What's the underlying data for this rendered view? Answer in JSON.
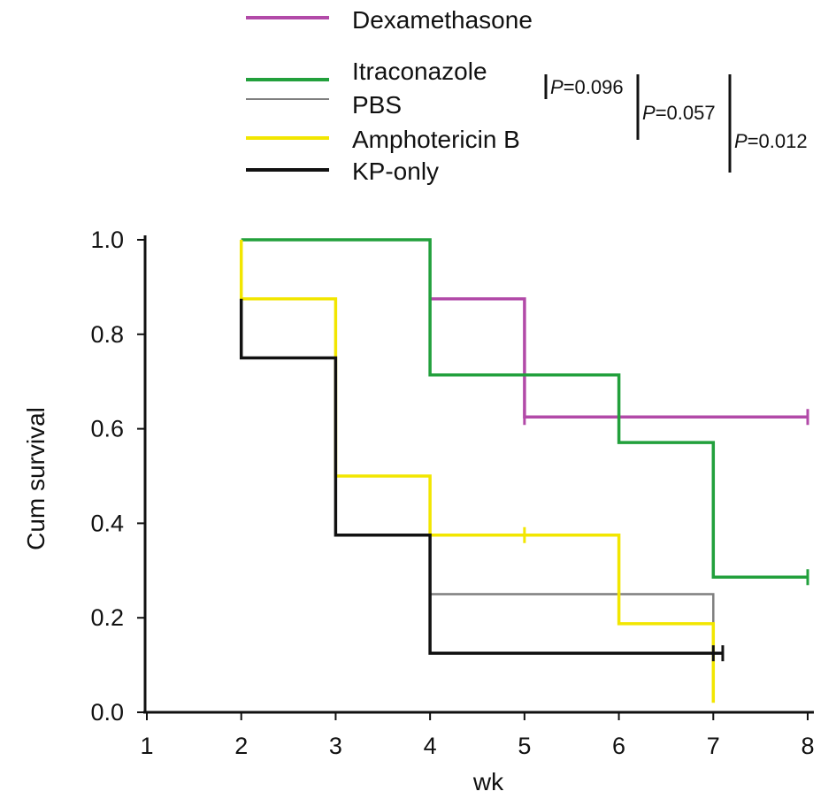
{
  "chart_data": {
    "type": "line",
    "title": "",
    "xlabel": "wk",
    "ylabel": "Cum survival",
    "xlim": [
      1,
      8
    ],
    "ylim": [
      0,
      1.0
    ],
    "x_ticks": [
      "1",
      "2",
      "3",
      "4",
      "5",
      "6",
      "7",
      "8"
    ],
    "y_ticks": [
      "0.0",
      "0.2",
      "0.4",
      "0.6",
      "0.8",
      "1.0"
    ],
    "grid": false,
    "legend_position": "top-left",
    "series": [
      {
        "name": "Dexamethasone",
        "color": "#b24aa8",
        "steps": [
          [
            4,
            0.875
          ],
          [
            5,
            0.875
          ],
          [
            5,
            0.625
          ],
          [
            8,
            0.625
          ]
        ],
        "censored": [
          [
            5,
            0.625
          ],
          [
            8,
            0.625
          ]
        ]
      },
      {
        "name": "Itraconazole",
        "color": "#22a03c",
        "steps": [
          [
            2,
            1.0
          ],
          [
            4,
            1.0
          ],
          [
            4,
            0.714
          ],
          [
            6,
            0.714
          ],
          [
            6,
            0.571
          ],
          [
            7,
            0.571
          ],
          [
            7,
            0.286
          ],
          [
            8,
            0.286
          ]
        ],
        "censored": [
          [
            8,
            0.286
          ]
        ]
      },
      {
        "name": "PBS",
        "color": "#7f7f7f",
        "steps": [
          [
            2,
            1.0
          ],
          [
            2,
            0.875
          ],
          [
            3,
            0.875
          ],
          [
            3,
            0.375
          ],
          [
            4,
            0.375
          ],
          [
            4,
            0.25
          ],
          [
            7,
            0.25
          ],
          [
            7,
            0.125
          ]
        ],
        "censored": []
      },
      {
        "name": "Amphotericin B",
        "color": "#f2e600",
        "steps": [
          [
            2,
            1.0
          ],
          [
            2,
            0.875
          ],
          [
            3,
            0.875
          ],
          [
            3,
            0.5
          ],
          [
            4,
            0.5
          ],
          [
            4,
            0.375
          ],
          [
            6,
            0.375
          ],
          [
            6,
            0.1875
          ],
          [
            7,
            0.1875
          ],
          [
            7,
            0.02
          ]
        ],
        "censored": [
          [
            5,
            0.375
          ]
        ]
      },
      {
        "name": "KP-only",
        "color": "#111111",
        "steps": [
          [
            2,
            0.875
          ],
          [
            2,
            0.75
          ],
          [
            3,
            0.75
          ],
          [
            3,
            0.5
          ],
          [
            3,
            0.375
          ],
          [
            4,
            0.375
          ],
          [
            4,
            0.125
          ],
          [
            7.1,
            0.125
          ]
        ],
        "censored": [
          [
            7,
            0.125
          ],
          [
            7.1,
            0.125
          ]
        ]
      }
    ],
    "annotations": [
      {
        "prefix": "P",
        "value": "=0.096"
      },
      {
        "prefix": "P",
        "value": "=0.057"
      },
      {
        "prefix": "P",
        "value": "=0.012"
      }
    ]
  }
}
